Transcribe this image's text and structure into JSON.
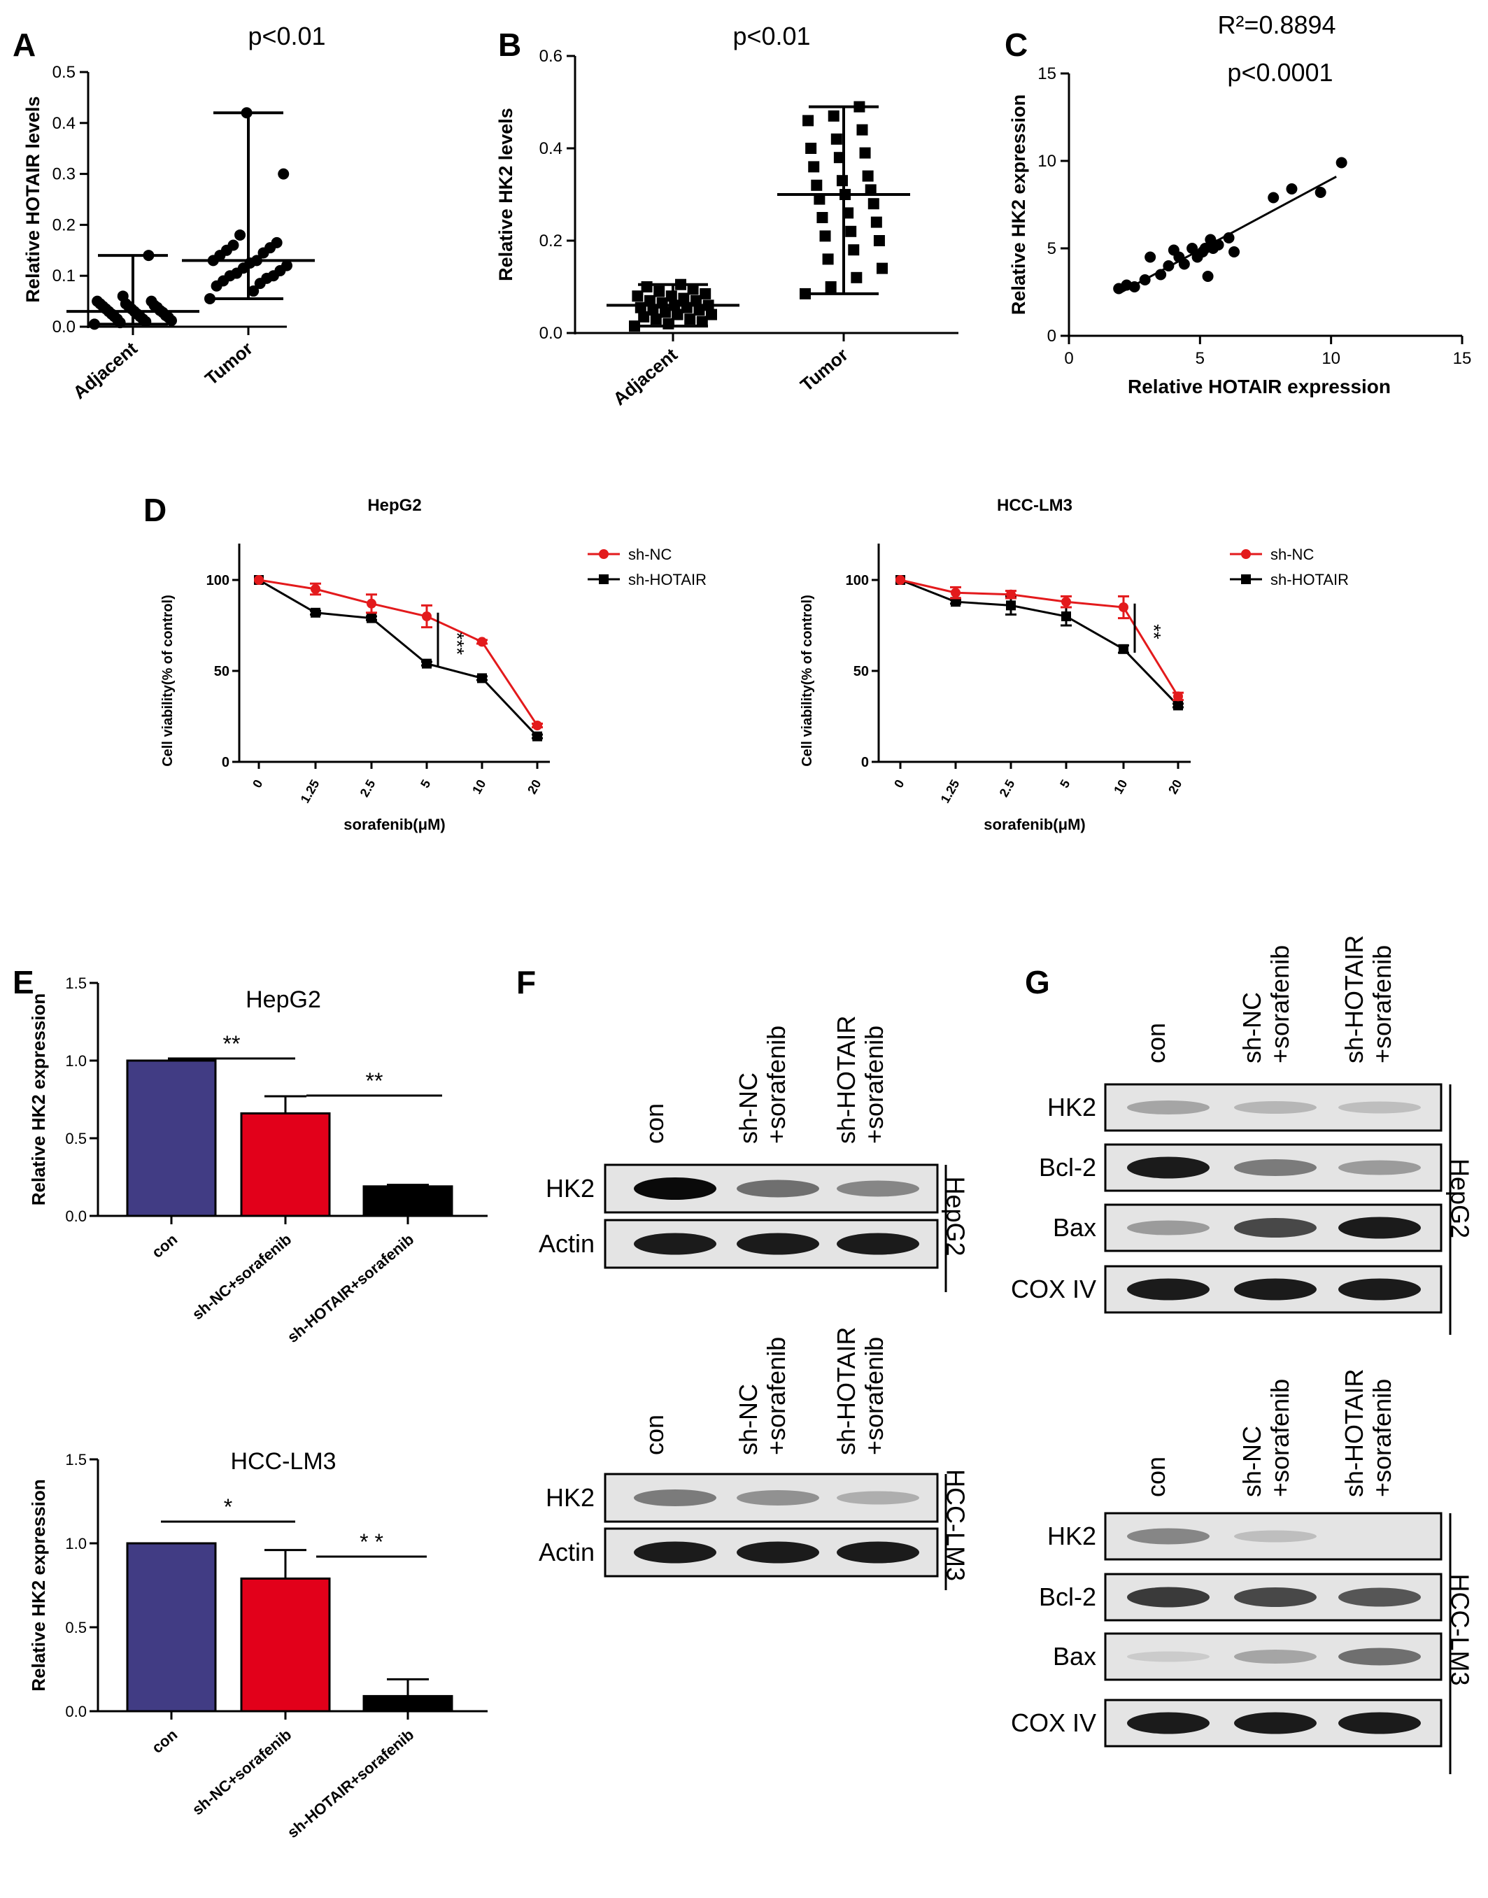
{
  "panel_labels": [
    "A",
    "B",
    "C",
    "D",
    "E",
    "F",
    "G"
  ],
  "chart_data": [
    {
      "panel": "A",
      "type": "scatter",
      "title": "p<0.01",
      "ylabel": "Relative HOTAIR levels",
      "xlabel": "",
      "categories": [
        "Adjacent",
        "Tumor"
      ],
      "ylim": [
        0,
        0.5
      ],
      "yticks": [
        "0.0",
        "0.1",
        "0.2",
        "0.3",
        "0.4",
        "0.5"
      ],
      "groups": [
        {
          "name": "Adjacent",
          "points": [
            0.005,
            0.008,
            0.01,
            0.012,
            0.015,
            0.015,
            0.018,
            0.02,
            0.02,
            0.022,
            0.025,
            0.025,
            0.028,
            0.03,
            0.03,
            0.032,
            0.035,
            0.035,
            0.038,
            0.04,
            0.04,
            0.042,
            0.045,
            0.045,
            0.05,
            0.05,
            0.06,
            0.14
          ],
          "mean": 0.03,
          "lower": 0.005,
          "upper": 0.14
        },
        {
          "name": "Tumor",
          "points": [
            0.055,
            0.07,
            0.08,
            0.085,
            0.09,
            0.095,
            0.1,
            0.1,
            0.105,
            0.11,
            0.115,
            0.12,
            0.125,
            0.13,
            0.13,
            0.14,
            0.145,
            0.15,
            0.155,
            0.16,
            0.165,
            0.18,
            0.3,
            0.42
          ],
          "mean": 0.13,
          "lower": 0.055,
          "upper": 0.42
        }
      ]
    },
    {
      "panel": "B",
      "type": "scatter",
      "title": "p<0.01",
      "ylabel": "Relative HK2 levels",
      "xlabel": "",
      "categories": [
        "Adjacent",
        "Tumor"
      ],
      "ylim": [
        0,
        0.6
      ],
      "yticks": [
        "0.0",
        "0.2",
        "0.4",
        "0.6"
      ],
      "groups": [
        {
          "name": "Adjacent",
          "points": [
            0.015,
            0.02,
            0.025,
            0.03,
            0.03,
            0.035,
            0.04,
            0.04,
            0.045,
            0.05,
            0.05,
            0.055,
            0.055,
            0.06,
            0.06,
            0.065,
            0.07,
            0.07,
            0.075,
            0.08,
            0.08,
            0.085,
            0.09,
            0.095,
            0.1,
            0.105
          ],
          "mean": 0.06,
          "lower": 0.015,
          "upper": 0.105
        },
        {
          "name": "Tumor",
          "points": [
            0.085,
            0.1,
            0.12,
            0.14,
            0.16,
            0.18,
            0.2,
            0.21,
            0.22,
            0.24,
            0.25,
            0.26,
            0.28,
            0.29,
            0.3,
            0.31,
            0.32,
            0.33,
            0.34,
            0.36,
            0.38,
            0.39,
            0.4,
            0.42,
            0.44,
            0.46,
            0.47,
            0.49
          ],
          "mean": 0.3,
          "lower": 0.085,
          "upper": 0.49
        }
      ]
    },
    {
      "panel": "C",
      "type": "scatter",
      "title": "R²=0.8894",
      "subtitle": "p<0.0001",
      "xlabel": "Relative HOTAIR expression",
      "ylabel": "Relative HK2 expression",
      "xlim": [
        0,
        15
      ],
      "ylim": [
        0,
        15
      ],
      "xticks": [
        "0",
        "5",
        "10",
        "15"
      ],
      "yticks": [
        "0",
        "5",
        "10",
        "15"
      ],
      "x": [
        1.9,
        2.2,
        2.5,
        2.9,
        3.1,
        3.5,
        3.8,
        4.0,
        4.2,
        4.4,
        4.7,
        4.9,
        5.1,
        5.2,
        5.3,
        5.4,
        5.5,
        5.7,
        6.1,
        6.3,
        7.8,
        8.5,
        9.6,
        10.4
      ],
      "y": [
        2.7,
        2.9,
        2.8,
        3.2,
        4.5,
        3.5,
        4.0,
        4.9,
        4.5,
        4.1,
        5.0,
        4.5,
        4.8,
        5.0,
        3.4,
        5.5,
        5.0,
        5.2,
        5.6,
        4.8,
        7.9,
        8.4,
        8.2,
        9.9
      ],
      "fit": {
        "x": [
          2.0,
          10.2
        ],
        "y": [
          2.5,
          9.1
        ]
      }
    },
    {
      "panel": "D1",
      "type": "line",
      "title": "HepG2",
      "xlabel": "sorafenib(μM)",
      "ylabel": "Cell viability(% of control)",
      "categories": [
        "0",
        "1.25",
        "2.5",
        "5",
        "10",
        "20"
      ],
      "ylim": [
        0,
        120
      ],
      "yticks": [
        "0",
        "50",
        "100"
      ],
      "series": [
        {
          "name": "sh-NC",
          "color": "#e31a1c",
          "values": [
            100,
            95,
            87,
            80,
            66,
            20
          ],
          "err": [
            0,
            3,
            5,
            6,
            1,
            1
          ]
        },
        {
          "name": "sh-HOTAIR",
          "color": "#000000",
          "values": [
            100,
            82,
            79,
            54,
            46,
            14
          ],
          "err": [
            0,
            1,
            1,
            1,
            1,
            1
          ]
        }
      ],
      "annotation": "***"
    },
    {
      "panel": "D2",
      "type": "line",
      "title": "HCC-LM3",
      "xlabel": "sorafenib(μM)",
      "ylabel": "Cell viability(% of control)",
      "categories": [
        "0",
        "1.25",
        "2.5",
        "5",
        "10",
        "20"
      ],
      "ylim": [
        0,
        120
      ],
      "yticks": [
        "0",
        "50",
        "100"
      ],
      "series": [
        {
          "name": "sh-NC",
          "color": "#e31a1c",
          "values": [
            100,
            93,
            92,
            88,
            85,
            36
          ],
          "err": [
            0,
            3,
            2,
            3,
            6,
            2
          ]
        },
        {
          "name": "sh-HOTAIR",
          "color": "#000000",
          "values": [
            100,
            88,
            86,
            80,
            62,
            31
          ],
          "err": [
            0,
            1,
            5,
            5,
            2,
            1
          ]
        }
      ],
      "annotation": "**"
    },
    {
      "panel": "E1",
      "type": "bar",
      "title": "HepG2",
      "ylabel": "Relative HK2 expression",
      "xlabel": "",
      "categories": [
        "con",
        "sh-NC+sorafenib",
        "sh-HOTAIR+sorafenib"
      ],
      "values": [
        1.0,
        0.66,
        0.19
      ],
      "err": [
        0,
        0.11,
        0.01
      ],
      "colors": [
        "#413C84",
        "#E2001A",
        "#000000"
      ],
      "ylim": [
        0,
        1.5
      ],
      "yticks": [
        "0.0",
        "0.5",
        "1.0",
        "1.5"
      ],
      "significance": [
        "**",
        "**"
      ]
    },
    {
      "panel": "E2",
      "type": "bar",
      "title": "HCC-LM3",
      "ylabel": "Relative HK2 expression",
      "xlabel": "",
      "categories": [
        "con",
        "sh-NC+sorafenib",
        "sh-HOTAIR+sorafenib"
      ],
      "values": [
        1.0,
        0.79,
        0.09
      ],
      "err": [
        0,
        0.17,
        0.1
      ],
      "colors": [
        "#413C84",
        "#E2001A",
        "#000000"
      ],
      "ylim": [
        0,
        1.5
      ],
      "yticks": [
        "0.0",
        "0.5",
        "1.0",
        "1.5"
      ],
      "significance": [
        "*",
        "* *"
      ]
    }
  ],
  "blots": {
    "F": {
      "columns": [
        [
          "con"
        ],
        [
          "sh-NC",
          "+sorafenib"
        ],
        [
          "sh-HOTAIR",
          "+sorafenib"
        ]
      ],
      "groups": [
        {
          "cell_line": "HepG2",
          "rows": [
            {
              "label": "HK2",
              "intensity": [
                1.0,
                0.65,
                0.55
              ]
            },
            {
              "label": "Actin",
              "intensity": [
                0.95,
                0.95,
                0.95
              ]
            }
          ]
        },
        {
          "cell_line": "HCC-LM3",
          "rows": [
            {
              "label": "HK2",
              "intensity": [
                0.6,
                0.5,
                0.35
              ]
            },
            {
              "label": "Actin",
              "intensity": [
                0.95,
                0.95,
                0.95
              ]
            }
          ]
        }
      ]
    },
    "G": {
      "columns": [
        [
          "con"
        ],
        [
          "sh-NC",
          "+sorafenib"
        ],
        [
          "sh-HOTAIR",
          "+sorafenib"
        ]
      ],
      "groups": [
        {
          "cell_line": "HepG2",
          "rows": [
            {
              "label": "HK2",
              "intensity": [
                0.4,
                0.3,
                0.25
              ]
            },
            {
              "label": "Bcl-2",
              "intensity": [
                0.95,
                0.6,
                0.45
              ]
            },
            {
              "label": "Bax",
              "intensity": [
                0.45,
                0.8,
                0.95
              ]
            },
            {
              "label": "COX IV",
              "intensity": [
                0.95,
                0.95,
                0.95
              ]
            }
          ]
        },
        {
          "cell_line": "HCC-LM3",
          "rows": [
            {
              "label": "HK2",
              "intensity": [
                0.55,
                0.25,
                0.0
              ]
            },
            {
              "label": "Bcl-2",
              "intensity": [
                0.85,
                0.8,
                0.75
              ]
            },
            {
              "label": "Bax",
              "intensity": [
                0.15,
                0.4,
                0.65
              ]
            },
            {
              "label": "COX IV",
              "intensity": [
                0.95,
                0.95,
                0.95
              ]
            }
          ]
        }
      ]
    }
  }
}
